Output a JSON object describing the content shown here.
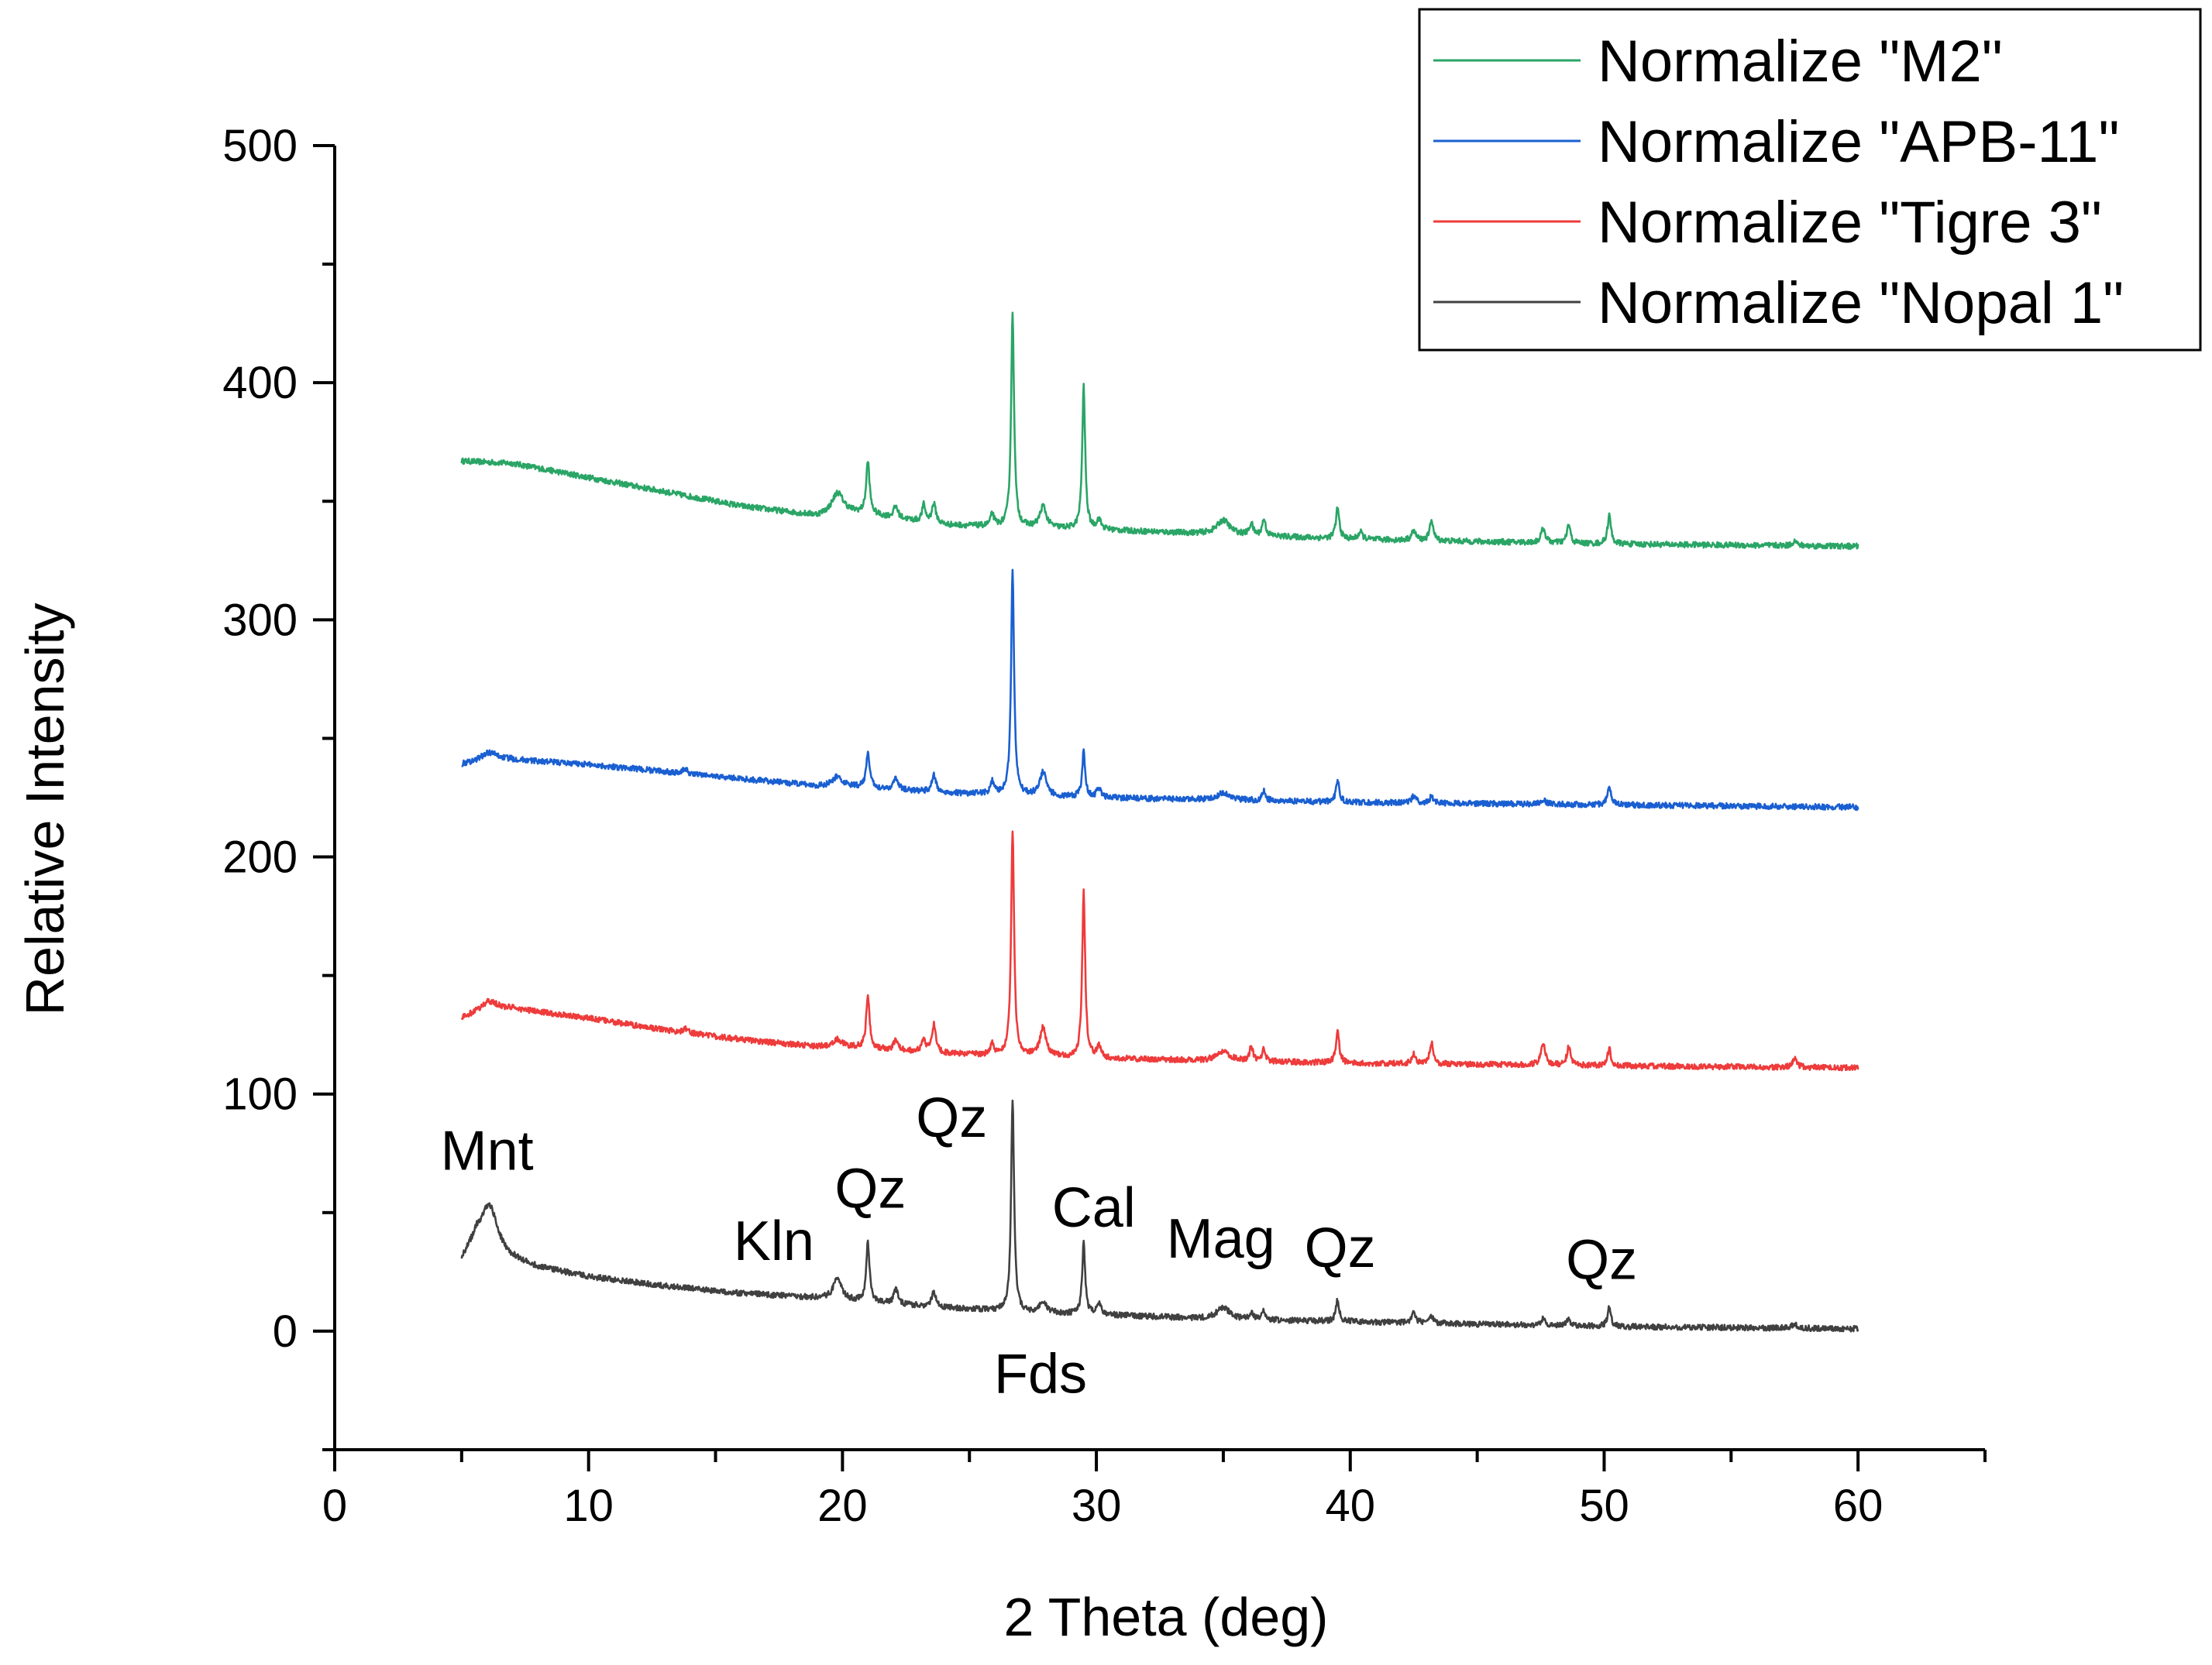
{
  "chart_data": {
    "type": "line",
    "title": "",
    "xlabel": "2 Theta (deg)",
    "ylabel": "Relative Intensity",
    "xlim": [
      0,
      65
    ],
    "ylim": [
      -50,
      500
    ],
    "x_ticks": [
      0,
      10,
      20,
      30,
      40,
      50,
      60
    ],
    "y_ticks": [
      0,
      100,
      200,
      300,
      400,
      500
    ],
    "x_tick_labels": [
      "0",
      "10",
      "20",
      "30",
      "40",
      "50",
      "60"
    ],
    "y_tick_labels": [
      "0",
      "100",
      "200",
      "300",
      "400",
      "500"
    ],
    "legend_position": "top-right",
    "series": [
      {
        "name": "Normalize \"M2\"",
        "color": "#2aa566",
        "offset": 330,
        "baseline": [
          [
            5,
            37
          ],
          [
            7,
            36
          ],
          [
            10,
            30
          ],
          [
            13,
            24
          ],
          [
            16,
            18
          ],
          [
            19,
            14
          ],
          [
            20,
            16
          ],
          [
            24,
            10
          ],
          [
            27,
            9
          ],
          [
            30,
            8
          ],
          [
            35,
            6
          ],
          [
            40,
            4
          ],
          [
            45,
            3
          ],
          [
            50,
            2
          ],
          [
            55,
            1.5
          ],
          [
            60,
            1
          ]
        ],
        "peaks": [
          [
            19.8,
            8,
            0.25
          ],
          [
            21.0,
            22,
            0.08
          ],
          [
            22.1,
            5,
            0.1
          ],
          [
            23.2,
            7,
            0.08
          ],
          [
            23.6,
            8,
            0.1
          ],
          [
            25.9,
            5,
            0.08
          ],
          [
            26.7,
            90,
            0.07
          ],
          [
            27.9,
            9,
            0.15
          ],
          [
            29.5,
            60,
            0.07
          ],
          [
            30.1,
            4,
            0.1
          ],
          [
            35.0,
            6,
            0.3
          ],
          [
            36.1,
            5,
            0.08
          ],
          [
            36.6,
            7,
            0.08
          ],
          [
            39.5,
            13,
            0.08
          ],
          [
            40.4,
            3,
            0.1
          ],
          [
            42.5,
            4,
            0.1
          ],
          [
            43.2,
            9,
            0.08
          ],
          [
            47.6,
            6,
            0.1
          ],
          [
            48.6,
            8,
            0.08
          ],
          [
            50.2,
            12,
            0.08
          ],
          [
            57.5,
            2,
            0.1
          ]
        ]
      },
      {
        "name": "Normalize \"APB-11\"",
        "color": "#1a5fd1",
        "offset": 220,
        "baseline": [
          [
            5,
            19
          ],
          [
            6,
            21
          ],
          [
            7,
            21
          ],
          [
            10,
            19
          ],
          [
            13,
            16
          ],
          [
            16,
            13
          ],
          [
            19,
            10
          ],
          [
            20,
            10
          ],
          [
            24,
            7
          ],
          [
            27,
            6
          ],
          [
            30,
            5
          ],
          [
            35,
            4
          ],
          [
            40,
            3
          ],
          [
            45,
            2.5
          ],
          [
            50,
            2
          ],
          [
            55,
            1.5
          ],
          [
            60,
            1
          ]
        ],
        "peaks": [
          [
            6.1,
            3,
            0.4
          ],
          [
            13.8,
            2,
            0.1
          ],
          [
            19.8,
            4,
            0.2
          ],
          [
            21.0,
            15,
            0.08
          ],
          [
            22.1,
            5,
            0.1
          ],
          [
            23.6,
            7,
            0.1
          ],
          [
            25.9,
            5,
            0.08
          ],
          [
            26.7,
            95,
            0.07
          ],
          [
            27.9,
            10,
            0.15
          ],
          [
            29.5,
            19,
            0.07
          ],
          [
            30.1,
            4,
            0.1
          ],
          [
            35.0,
            3,
            0.3
          ],
          [
            36.6,
            4,
            0.08
          ],
          [
            39.5,
            9,
            0.08
          ],
          [
            42.5,
            3,
            0.1
          ],
          [
            43.2,
            3,
            0.08
          ],
          [
            47.6,
            2,
            0.1
          ],
          [
            50.2,
            8,
            0.08
          ]
        ]
      },
      {
        "name": "Normalize \"Tigre 3\"",
        "color": "#ee3b3b",
        "offset": 110,
        "baseline": [
          [
            5,
            22
          ],
          [
            6,
            26
          ],
          [
            7,
            26
          ],
          [
            10,
            22
          ],
          [
            13,
            17
          ],
          [
            16,
            13
          ],
          [
            19,
            10
          ],
          [
            20,
            10
          ],
          [
            24,
            7
          ],
          [
            27,
            6
          ],
          [
            30,
            5
          ],
          [
            35,
            4
          ],
          [
            40,
            3
          ],
          [
            45,
            2.5
          ],
          [
            50,
            2
          ],
          [
            55,
            1.5
          ],
          [
            60,
            1
          ]
        ],
        "peaks": [
          [
            6.1,
            3,
            0.4
          ],
          [
            13.8,
            2,
            0.1
          ],
          [
            19.8,
            3,
            0.2
          ],
          [
            21.0,
            22,
            0.08
          ],
          [
            22.1,
            4,
            0.1
          ],
          [
            23.2,
            5,
            0.08
          ],
          [
            23.6,
            12,
            0.1
          ],
          [
            25.9,
            5,
            0.08
          ],
          [
            26.7,
            95,
            0.07
          ],
          [
            27.9,
            12,
            0.15
          ],
          [
            29.5,
            70,
            0.07
          ],
          [
            30.1,
            5,
            0.1
          ],
          [
            35.0,
            4,
            0.3
          ],
          [
            36.1,
            6,
            0.08
          ],
          [
            36.6,
            5,
            0.08
          ],
          [
            39.5,
            13,
            0.08
          ],
          [
            42.5,
            4,
            0.1
          ],
          [
            43.2,
            9,
            0.08
          ],
          [
            47.6,
            9,
            0.1
          ],
          [
            48.6,
            8,
            0.08
          ],
          [
            50.2,
            7,
            0.08
          ],
          [
            57.5,
            4,
            0.1
          ]
        ]
      },
      {
        "name": "Normalize \"Nopal 1\"",
        "color": "#404040",
        "offset": 0,
        "baseline": [
          [
            5,
            30
          ],
          [
            5.6,
            40
          ],
          [
            6.9,
            31
          ],
          [
            8,
            27
          ],
          [
            10,
            23
          ],
          [
            13,
            19
          ],
          [
            16,
            16
          ],
          [
            19,
            14
          ],
          [
            20,
            13
          ],
          [
            24,
            10
          ],
          [
            27,
            8
          ],
          [
            30,
            7
          ],
          [
            35,
            5
          ],
          [
            40,
            4
          ],
          [
            45,
            3
          ],
          [
            50,
            2
          ],
          [
            55,
            1.5
          ],
          [
            60,
            1
          ]
        ],
        "peaks": [
          [
            6.1,
            17,
            0.35
          ],
          [
            19.8,
            9,
            0.2
          ],
          [
            21.0,
            25,
            0.08
          ],
          [
            22.1,
            6,
            0.1
          ],
          [
            23.6,
            6,
            0.1
          ],
          [
            26.7,
            90,
            0.07
          ],
          [
            27.9,
            5,
            0.15
          ],
          [
            29.5,
            30,
            0.07
          ],
          [
            30.1,
            5,
            0.1
          ],
          [
            35.0,
            5,
            0.3
          ],
          [
            36.1,
            3,
            0.08
          ],
          [
            36.6,
            4,
            0.08
          ],
          [
            39.5,
            9,
            0.08
          ],
          [
            42.5,
            4,
            0.1
          ],
          [
            43.2,
            3,
            0.08
          ],
          [
            47.6,
            3,
            0.1
          ],
          [
            48.6,
            3,
            0.08
          ],
          [
            50.2,
            8,
            0.08
          ],
          [
            57.5,
            2,
            0.1
          ]
        ]
      }
    ],
    "annotations": [
      {
        "text": "Mnt",
        "x": 6.0,
        "y": 68
      },
      {
        "text": "Kln",
        "x": 17.3,
        "y": 30
      },
      {
        "text": "Qz",
        "x": 21.1,
        "y": 52
      },
      {
        "text": "Qz",
        "x": 24.3,
        "y": 82
      },
      {
        "text": "Cal",
        "x": 29.9,
        "y": 44
      },
      {
        "text": "Fds",
        "x": 27.8,
        "y": -26
      },
      {
        "text": "Mag",
        "x": 34.9,
        "y": 31
      },
      {
        "text": "Qz",
        "x": 39.6,
        "y": 27
      },
      {
        "text": "Qz",
        "x": 49.9,
        "y": 22
      }
    ]
  }
}
